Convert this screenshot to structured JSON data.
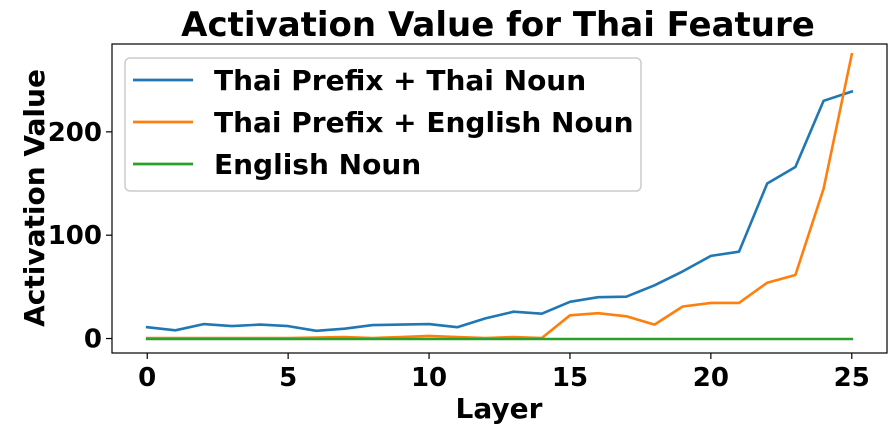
{
  "chart_data": {
    "type": "line",
    "title": "Activation Value for Thai Feature",
    "xlabel": "Layer",
    "ylabel": "Activation Value",
    "xlim": [
      -1.25,
      26.25
    ],
    "ylim": [
      -14,
      285
    ],
    "x_ticks": [
      0,
      5,
      10,
      15,
      20,
      25
    ],
    "y_ticks": [
      0,
      100,
      200
    ],
    "legend_position": "upper-left",
    "grid": false,
    "x": [
      0,
      1,
      2,
      3,
      4,
      5,
      6,
      7,
      8,
      9,
      10,
      11,
      12,
      13,
      14,
      15,
      16,
      17,
      18,
      19,
      20,
      21,
      22,
      23,
      24,
      25
    ],
    "series": [
      {
        "name": "Thai Prefix + Thai Noun",
        "color": "#1f77b4",
        "values": [
          11,
          8,
          14,
          12,
          13.5,
          12,
          7.5,
          9.5,
          13,
          13.5,
          14,
          11,
          19.5,
          26,
          24,
          35.5,
          40,
          40.5,
          51.5,
          65,
          80,
          84,
          150,
          166,
          230,
          239
        ]
      },
      {
        "name": "Thai Prefix + English Noun",
        "color": "#ff7f0e",
        "values": [
          0.5,
          0.5,
          0.5,
          0.5,
          0.5,
          0.5,
          1,
          1.5,
          0.5,
          1.5,
          2.5,
          1.5,
          0.5,
          1.5,
          0.5,
          22.5,
          24.5,
          21.5,
          13.5,
          31,
          34.5,
          34.5,
          54,
          61.5,
          145,
          275
        ]
      },
      {
        "name": "English Noun",
        "color": "#2ca02c",
        "values": [
          -0.5,
          -0.5,
          -0.5,
          -0.5,
          -0.5,
          -0.5,
          -0.5,
          -0.5,
          -0.5,
          -0.5,
          -0.5,
          -0.5,
          -0.5,
          -0.5,
          -0.5,
          -0.5,
          -0.5,
          -0.5,
          -0.5,
          -0.5,
          -0.5,
          -0.5,
          -0.5,
          -0.5,
          -0.5,
          -0.5
        ]
      }
    ]
  }
}
